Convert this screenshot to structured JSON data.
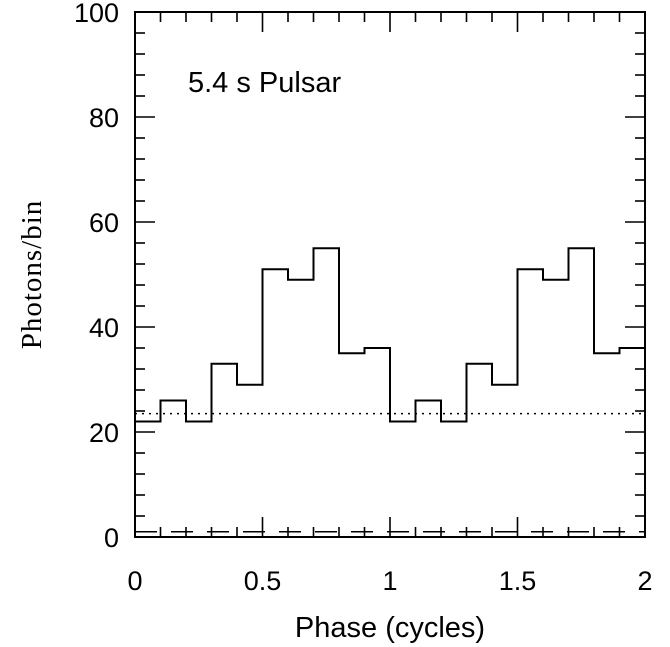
{
  "chart_data": {
    "type": "step",
    "title": "",
    "annotation": "5.4 s Pulsar",
    "xlabel": "Phase (cycles)",
    "ylabel": "Photons/bin",
    "xlim": [
      0,
      2
    ],
    "ylim": [
      0,
      100
    ],
    "x_ticks": [
      0,
      0.5,
      1,
      1.5,
      2
    ],
    "x_tick_labels": [
      "0",
      "0.5",
      "1",
      "1.5",
      "2"
    ],
    "y_ticks": [
      0,
      20,
      40,
      60,
      80,
      100
    ],
    "y_tick_labels": [
      "0",
      "20",
      "40",
      "60",
      "80",
      "100"
    ],
    "x_minor_step": 0.1,
    "y_minor_step": 4,
    "bin_width": 0.1,
    "series": [
      {
        "bin_start": [
          0,
          0.1,
          0.2,
          0.3,
          0.4,
          0.5,
          0.6,
          0.7,
          0.8,
          0.9,
          1.0,
          1.1,
          1.2,
          1.3,
          1.4,
          1.5,
          1.6,
          1.7,
          1.8,
          1.9
        ],
        "values": [
          22,
          26,
          22,
          33,
          29,
          51,
          49,
          55,
          35,
          36,
          22,
          26,
          22,
          33,
          29,
          51,
          49,
          55,
          35,
          36
        ]
      }
    ],
    "reference_lines": [
      {
        "y": 23.5,
        "style": "dotted"
      },
      {
        "y": 1,
        "style": "dashed"
      }
    ],
    "grid": false,
    "legend": "none"
  }
}
